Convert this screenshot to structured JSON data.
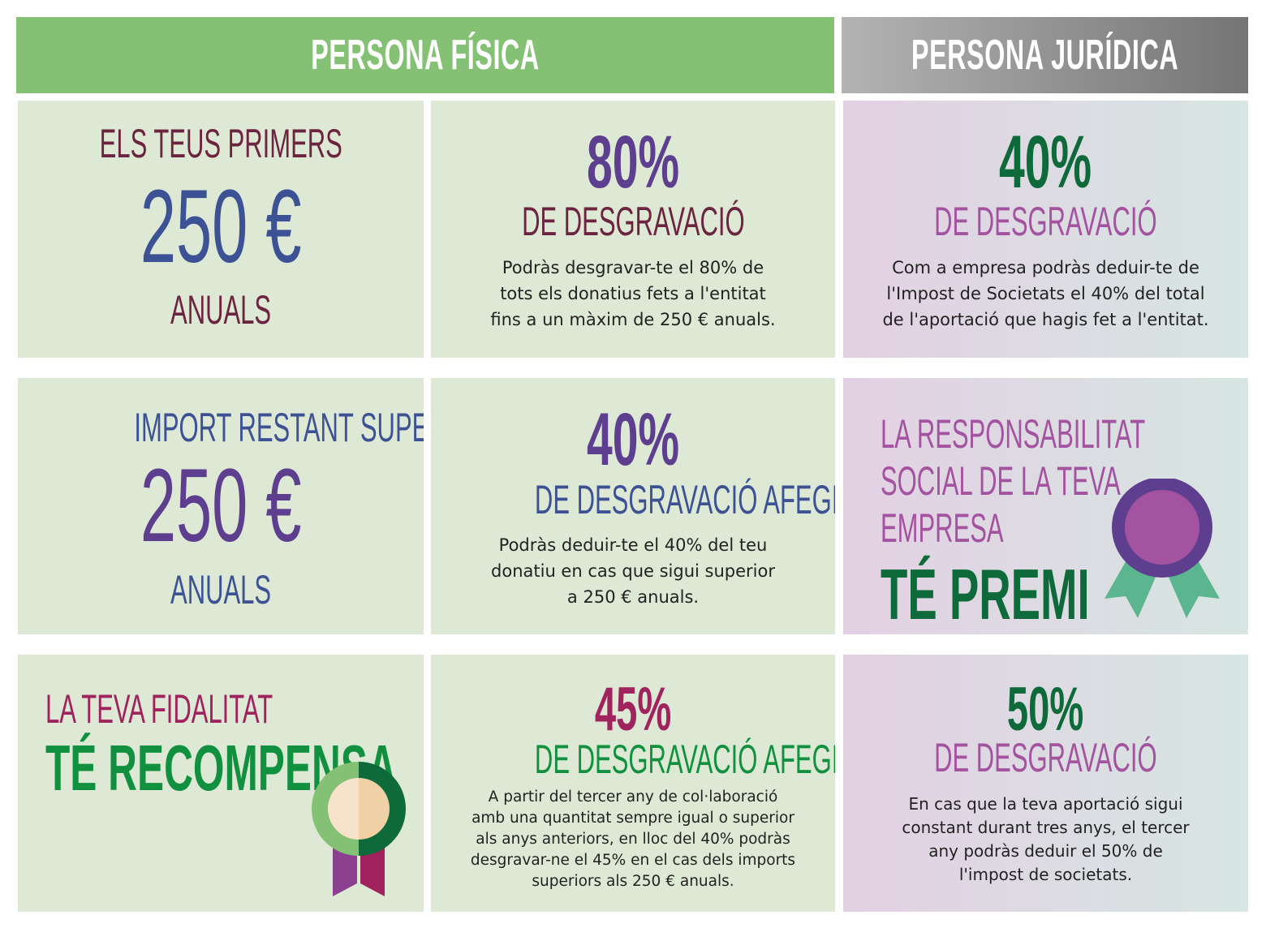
{
  "headers": {
    "fisica": "PERSONA FÍSICA",
    "juridica": "PERSONA JURÍDICA"
  },
  "row1": {
    "left": {
      "top": "ELS TEUS PRIMERS",
      "amount": "250 €",
      "bottom": "ANUALS"
    },
    "middle": {
      "percent": "80%",
      "label": "DE DESGRAVACIÓ",
      "text": [
        "Podràs desgravar-te el 80% de",
        "tots els donatius fets a l'entitat",
        "fins a un màxim de 250 € anuals."
      ]
    },
    "right": {
      "percent": "40%",
      "label": "DE DESGRAVACIÓ",
      "text": [
        "Com a empresa podràs deduir-te de",
        "l'Impost de Societats el 40% del total",
        "de l'aportació que hagis fet a l'entitat."
      ]
    }
  },
  "row2": {
    "left": {
      "top": "IMPORT RESTANT SUPERIOR A",
      "amount": "250 €",
      "bottom": "ANUALS"
    },
    "middle": {
      "percent": "40%",
      "label": "DE DESGRAVACIÓ AFEGIDA",
      "text": [
        "Podràs deduir-te el 40% del teu",
        "donatiu en cas que sigui superior",
        "a 250 € anuals."
      ]
    },
    "right": {
      "lines": [
        "LA RESPONSABILITAT",
        "SOCIAL DE LA TEVA",
        "EMPRESA"
      ],
      "highlight": "TÉ PREMI",
      "icon": "award-rosette-icon"
    }
  },
  "row3": {
    "left": {
      "line": "LA TEVA FIDALITAT",
      "highlight": "TÉ RECOMPENSA",
      "icon": "award-medal-icon"
    },
    "middle": {
      "percent": "45%",
      "label": "DE DESGRAVACIÓ AFEGIDA",
      "text": [
        "A partir del tercer any de col·laboració",
        "amb una quantitat sempre igual o superior",
        "als anys anteriors, en lloc del 40% podràs",
        "desgravar-ne el 45% en el cas dels imports",
        "superiors als 250 € anuals."
      ]
    },
    "right": {
      "percent": "50%",
      "label": "DE DESGRAVACIÓ",
      "text": [
        "En cas que la teva aportació sigui",
        "constant durant tres anys, el tercer",
        "any podràs deduir el 50% de",
        "l'impost de societats."
      ]
    }
  },
  "colors": {
    "header_green": "#84c175",
    "cell_green": "#dde9d4",
    "maroon": "#6c2440",
    "navy": "#3d5295",
    "purple": "#5e3f8f",
    "dark_green": "#0e6a3a",
    "bright_green": "#11913f",
    "magenta": "#a0235e",
    "orchid": "#a3539f"
  }
}
